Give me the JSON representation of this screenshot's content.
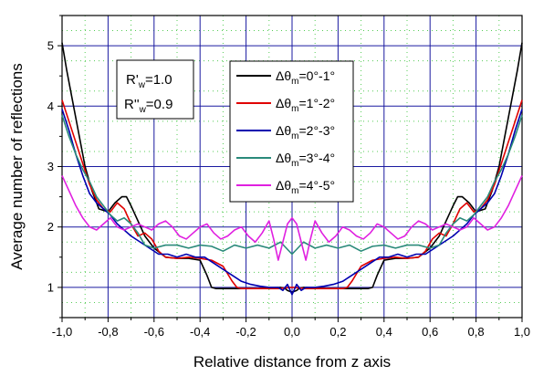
{
  "chart_data": {
    "type": "line",
    "title": "",
    "xlabel": "Relative distance from z axis",
    "ylabel": "Average number of reflections",
    "xlim": [
      -1.0,
      1.0
    ],
    "ylim": [
      0.5,
      5.5
    ],
    "x_ticks": [
      "-1,0",
      "-0,8",
      "-0,6",
      "-0,4",
      "-0,2",
      "0,0",
      "0,2",
      "0,4",
      "0,6",
      "0,8",
      "1,0"
    ],
    "y_ticks": [
      "1",
      "2",
      "3",
      "4",
      "5"
    ],
    "grid": true,
    "legend_position": "top-center",
    "annotation": {
      "line1_main": "R'",
      "line1_sub": "w",
      "line1_value": "=1.0",
      "line2_main": "R''",
      "line2_sub": "w",
      "line2_value": "=0.9"
    },
    "legend_symbol": "Δθ",
    "legend_sub": "m",
    "series": [
      {
        "name": "=0°-1°",
        "color": "#000000",
        "x": [
          -1.0,
          -0.98,
          -0.95,
          -0.92,
          -0.9,
          -0.87,
          -0.84,
          -0.8,
          -0.77,
          -0.74,
          -0.72,
          -0.7,
          -0.67,
          -0.64,
          -0.6,
          -0.55,
          -0.5,
          -0.45,
          -0.4,
          -0.37,
          -0.35,
          -0.33,
          -0.3,
          -0.25,
          -0.2,
          -0.15,
          -0.1,
          -0.05,
          -0.03,
          -0.02,
          0.0,
          0.02,
          0.03,
          0.05,
          0.1,
          0.15,
          0.2,
          0.25,
          0.3,
          0.33,
          0.35,
          0.37,
          0.4,
          0.45,
          0.5,
          0.55,
          0.6,
          0.64,
          0.67,
          0.7,
          0.72,
          0.74,
          0.77,
          0.8,
          0.84,
          0.87,
          0.9,
          0.92,
          0.95,
          0.98,
          1.0
        ],
        "values": [
          5.05,
          4.6,
          4.0,
          3.4,
          3.0,
          2.6,
          2.3,
          2.25,
          2.4,
          2.5,
          2.5,
          2.35,
          2.1,
          1.85,
          1.65,
          1.5,
          1.48,
          1.48,
          1.45,
          1.2,
          1.0,
          0.98,
          0.98,
          0.98,
          0.98,
          0.98,
          0.99,
          1.0,
          0.98,
          0.95,
          0.92,
          0.95,
          0.98,
          1.0,
          0.99,
          0.98,
          0.98,
          0.98,
          0.98,
          0.98,
          1.0,
          1.2,
          1.45,
          1.48,
          1.48,
          1.5,
          1.65,
          1.85,
          2.1,
          2.35,
          2.5,
          2.5,
          2.4,
          2.25,
          2.3,
          2.6,
          3.0,
          3.4,
          4.0,
          4.6,
          5.05
        ]
      },
      {
        "name": "=1°-2°",
        "color": "#e00000",
        "x": [
          -1.0,
          -0.97,
          -0.94,
          -0.91,
          -0.88,
          -0.85,
          -0.82,
          -0.79,
          -0.76,
          -0.73,
          -0.7,
          -0.67,
          -0.64,
          -0.61,
          -0.58,
          -0.55,
          -0.5,
          -0.45,
          -0.4,
          -0.35,
          -0.3,
          -0.26,
          -0.24,
          -0.22,
          -0.18,
          -0.12,
          -0.06,
          -0.03,
          -0.01,
          0.0,
          0.01,
          0.03,
          0.06,
          0.12,
          0.18,
          0.22,
          0.24,
          0.26,
          0.3,
          0.35,
          0.4,
          0.45,
          0.5,
          0.55,
          0.58,
          0.61,
          0.64,
          0.67,
          0.7,
          0.73,
          0.76,
          0.79,
          0.82,
          0.85,
          0.88,
          0.91,
          0.94,
          0.97,
          1.0
        ],
        "values": [
          4.1,
          3.75,
          3.4,
          3.05,
          2.7,
          2.45,
          2.3,
          2.25,
          2.4,
          2.3,
          2.05,
          1.85,
          1.9,
          1.8,
          1.6,
          1.5,
          1.48,
          1.5,
          1.48,
          1.45,
          1.35,
          1.1,
          1.0,
          0.98,
          0.98,
          0.98,
          0.98,
          0.99,
          1.0,
          1.0,
          1.0,
          0.99,
          0.98,
          0.98,
          0.98,
          0.98,
          1.0,
          1.1,
          1.35,
          1.45,
          1.48,
          1.5,
          1.48,
          1.5,
          1.6,
          1.8,
          1.9,
          1.85,
          2.05,
          2.3,
          2.4,
          2.25,
          2.3,
          2.45,
          2.7,
          3.05,
          3.4,
          3.75,
          4.1
        ]
      },
      {
        "name": "=2°-3°",
        "color": "#0000b0",
        "x": [
          -1.0,
          -0.97,
          -0.94,
          -0.91,
          -0.88,
          -0.85,
          -0.82,
          -0.79,
          -0.76,
          -0.73,
          -0.7,
          -0.66,
          -0.62,
          -0.58,
          -0.54,
          -0.5,
          -0.46,
          -0.42,
          -0.38,
          -0.34,
          -0.3,
          -0.26,
          -0.22,
          -0.18,
          -0.14,
          -0.1,
          -0.06,
          -0.04,
          -0.02,
          0.0,
          0.02,
          0.04,
          0.06,
          0.1,
          0.14,
          0.18,
          0.22,
          0.26,
          0.3,
          0.34,
          0.38,
          0.42,
          0.46,
          0.5,
          0.54,
          0.58,
          0.62,
          0.66,
          0.7,
          0.73,
          0.76,
          0.79,
          0.82,
          0.85,
          0.88,
          0.91,
          0.94,
          0.97,
          1.0
        ],
        "values": [
          3.95,
          3.6,
          3.2,
          2.85,
          2.55,
          2.4,
          2.3,
          2.2,
          2.05,
          1.95,
          1.85,
          1.75,
          1.65,
          1.55,
          1.55,
          1.5,
          1.55,
          1.5,
          1.5,
          1.4,
          1.3,
          1.2,
          1.1,
          1.05,
          1.02,
          1.0,
          1.0,
          0.95,
          1.05,
          0.88,
          1.05,
          0.95,
          1.0,
          1.0,
          1.02,
          1.05,
          1.1,
          1.2,
          1.3,
          1.4,
          1.5,
          1.5,
          1.55,
          1.5,
          1.55,
          1.55,
          1.65,
          1.75,
          1.85,
          1.95,
          2.05,
          2.2,
          2.3,
          2.4,
          2.55,
          2.85,
          3.2,
          3.6,
          3.95
        ]
      },
      {
        "name": "=3°-4°",
        "color": "#2a8a7a",
        "x": [
          -1.0,
          -0.97,
          -0.94,
          -0.91,
          -0.88,
          -0.85,
          -0.82,
          -0.79,
          -0.76,
          -0.73,
          -0.7,
          -0.67,
          -0.64,
          -0.6,
          -0.55,
          -0.5,
          -0.45,
          -0.4,
          -0.35,
          -0.3,
          -0.25,
          -0.2,
          -0.15,
          -0.1,
          -0.05,
          0.0,
          0.05,
          0.1,
          0.15,
          0.2,
          0.25,
          0.3,
          0.35,
          0.4,
          0.45,
          0.5,
          0.55,
          0.6,
          0.64,
          0.67,
          0.7,
          0.73,
          0.76,
          0.79,
          0.82,
          0.85,
          0.88,
          0.91,
          0.94,
          0.97,
          1.0
        ],
        "values": [
          3.85,
          3.5,
          3.2,
          2.95,
          2.75,
          2.5,
          2.35,
          2.2,
          2.1,
          2.15,
          2.05,
          1.9,
          1.7,
          1.65,
          1.7,
          1.7,
          1.65,
          1.7,
          1.68,
          1.6,
          1.7,
          1.65,
          1.7,
          1.65,
          1.75,
          1.55,
          1.75,
          1.65,
          1.7,
          1.65,
          1.7,
          1.6,
          1.68,
          1.7,
          1.65,
          1.7,
          1.7,
          1.65,
          1.7,
          1.9,
          2.05,
          2.15,
          2.1,
          2.2,
          2.35,
          2.5,
          2.75,
          2.95,
          3.2,
          3.5,
          3.85
        ]
      },
      {
        "name": "=4°-5°",
        "color": "#e020e0",
        "x": [
          -1.0,
          -0.97,
          -0.94,
          -0.91,
          -0.88,
          -0.85,
          -0.82,
          -0.79,
          -0.76,
          -0.73,
          -0.7,
          -0.67,
          -0.64,
          -0.61,
          -0.58,
          -0.55,
          -0.52,
          -0.49,
          -0.46,
          -0.43,
          -0.4,
          -0.37,
          -0.34,
          -0.31,
          -0.28,
          -0.25,
          -0.22,
          -0.19,
          -0.16,
          -0.13,
          -0.1,
          -0.08,
          -0.06,
          -0.04,
          -0.02,
          0.0,
          0.02,
          0.04,
          0.06,
          0.08,
          0.1,
          0.13,
          0.16,
          0.19,
          0.22,
          0.25,
          0.28,
          0.31,
          0.34,
          0.37,
          0.4,
          0.43,
          0.46,
          0.49,
          0.52,
          0.55,
          0.58,
          0.61,
          0.64,
          0.67,
          0.7,
          0.73,
          0.76,
          0.79,
          0.82,
          0.85,
          0.88,
          0.91,
          0.94,
          0.97,
          1.0
        ],
        "values": [
          2.85,
          2.6,
          2.35,
          2.15,
          2.0,
          1.95,
          2.05,
          2.15,
          2.0,
          1.95,
          2.0,
          2.05,
          2.0,
          1.95,
          2.05,
          2.1,
          2.0,
          1.85,
          1.8,
          1.9,
          2.0,
          2.05,
          1.9,
          1.8,
          1.85,
          1.95,
          2.0,
          1.85,
          1.75,
          1.9,
          2.1,
          1.8,
          1.45,
          1.75,
          2.05,
          2.15,
          2.05,
          1.75,
          1.45,
          1.8,
          2.1,
          1.9,
          1.75,
          1.85,
          2.0,
          1.95,
          1.85,
          1.8,
          1.9,
          2.05,
          2.0,
          1.9,
          1.8,
          1.85,
          2.0,
          2.1,
          2.05,
          1.95,
          2.0,
          2.05,
          2.0,
          1.95,
          2.0,
          2.15,
          2.05,
          1.95,
          2.0,
          2.15,
          2.35,
          2.6,
          2.85
        ]
      }
    ]
  }
}
